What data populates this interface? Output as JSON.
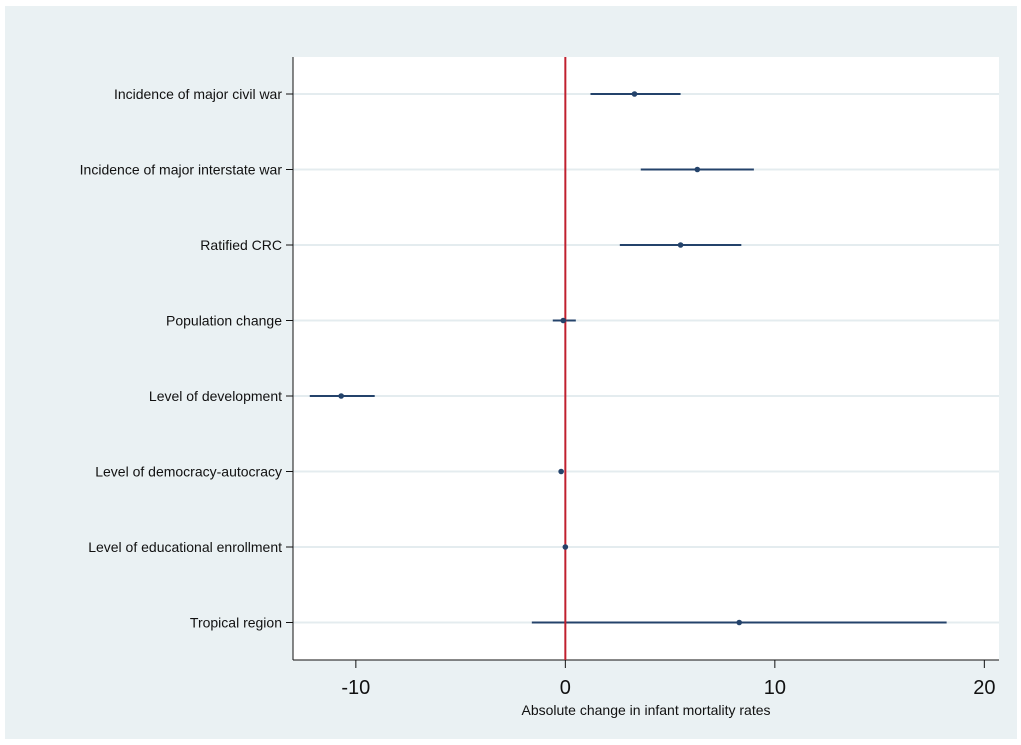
{
  "chart_data": {
    "type": "scatter",
    "subtype": "coefficient-plot",
    "title": "",
    "xlabel": "Absolute change in infant mortality rates",
    "ylabel": "",
    "xlim": [
      -13,
      20.7
    ],
    "xticks": [
      -10,
      0,
      10,
      20
    ],
    "xtick_labels": [
      "-10",
      "0",
      "10",
      "20"
    ],
    "reference_line": {
      "x": 0,
      "color": "#c0202e"
    },
    "grid": "horizontal",
    "series_color": "#24436b",
    "background_color": "#eaf1f3",
    "plot_background_color": "#ffffff",
    "categories": [
      "Incidence of major civil war",
      "Incidence of major interstate war",
      "Ratified CRC",
      "Population change",
      "Level of development",
      "Level of democracy-autocracy",
      "Level of educational enrollment",
      "Tropical region"
    ],
    "estimates": [
      {
        "label": "Incidence of major civil war",
        "value": 3.3,
        "ci_low": 1.2,
        "ci_high": 5.5
      },
      {
        "label": "Incidence of major interstate war",
        "value": 6.3,
        "ci_low": 3.6,
        "ci_high": 9.0
      },
      {
        "label": "Ratified CRC",
        "value": 5.5,
        "ci_low": 2.6,
        "ci_high": 8.4
      },
      {
        "label": "Population change",
        "value": -0.1,
        "ci_low": -0.6,
        "ci_high": 0.5
      },
      {
        "label": "Level of development",
        "value": -10.7,
        "ci_low": -12.2,
        "ci_high": -9.1
      },
      {
        "label": "Level of democracy-autocracy",
        "value": -0.2,
        "ci_low": -0.2,
        "ci_high": -0.2
      },
      {
        "label": "Level of educational enrollment",
        "value": 0.0,
        "ci_low": 0.0,
        "ci_high": 0.0
      },
      {
        "label": "Tropical region",
        "value": 8.3,
        "ci_low": -1.6,
        "ci_high": 18.2
      }
    ]
  }
}
